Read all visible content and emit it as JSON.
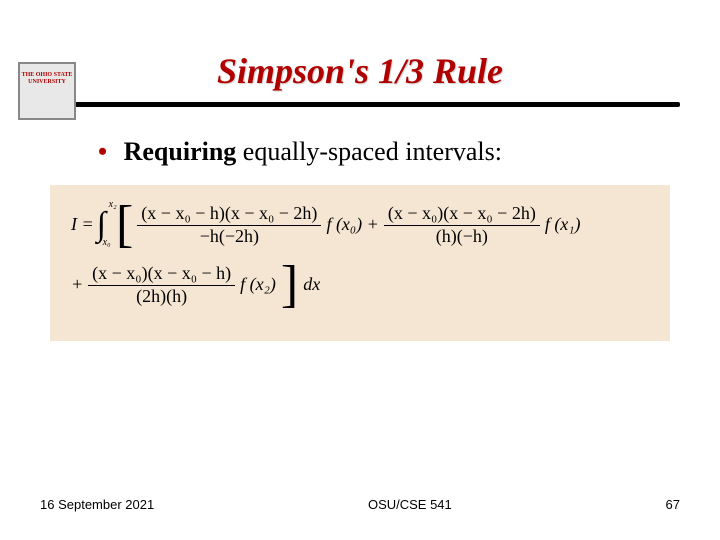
{
  "logo_text": "THE OHIO STATE UNIVERSITY",
  "title": "Simpson's 1/3 Rule",
  "bullet": {
    "lead": "Requiring",
    "rest": " equally-spaced intervals:"
  },
  "formula": {
    "background_color": "#f5e6d3",
    "I_eq": "I =",
    "int_upper": "x₂",
    "int_lower": "x₀",
    "term1_num": "(x − x₀ − h)(x − x₀ − 2h)",
    "term1_den": "−h(−2h)",
    "term1_fx": "f (x₀) +",
    "term2_num": "(x − x₀)(x − x₀ − 2h)",
    "term2_den": "(h)(−h)",
    "term2_fx": "f (x₁)",
    "plus": "+",
    "term3_num": "(x − x₀)(x − x₀ − h)",
    "term3_den": "(2h)(h)",
    "term3_fx": "f (x₂)",
    "dx": "dx"
  },
  "footer": {
    "date": "16 September 2021",
    "course": "OSU/CSE 541",
    "page": "67"
  },
  "colors": {
    "accent": "#b00000",
    "text": "#000000",
    "panel_bg": "#f5e6d3"
  }
}
